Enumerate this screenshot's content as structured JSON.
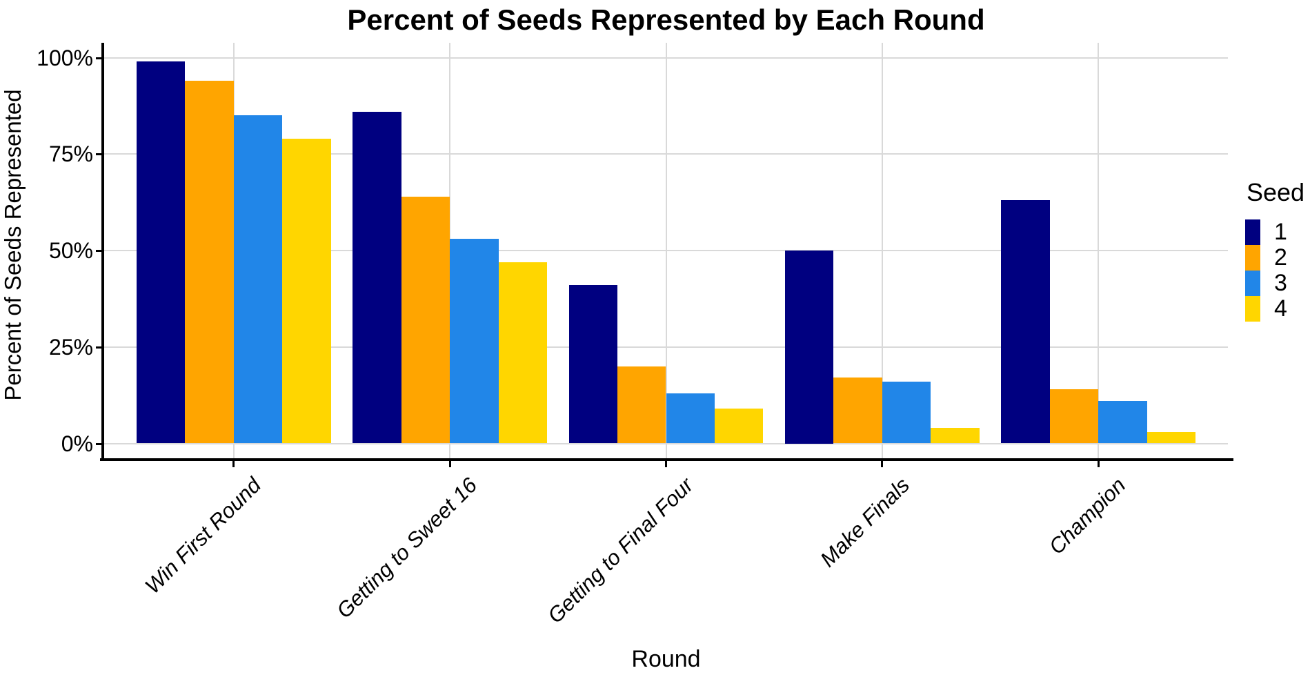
{
  "chart_data": {
    "type": "bar",
    "title": "Percent of Seeds Represented by Each Round",
    "xlabel": "Round",
    "ylabel": "Percent of Seeds Represented",
    "categories": [
      "Win First Round",
      "Getting to Sweet 16",
      "Getting to Final Four",
      "Make Finals",
      "Champion"
    ],
    "series": [
      {
        "name": "1",
        "color": "#000080",
        "values": [
          99,
          86,
          41,
          50,
          63
        ]
      },
      {
        "name": "2",
        "color": "#FFA500",
        "values": [
          94,
          64,
          20,
          17,
          14
        ]
      },
      {
        "name": "3",
        "color": "#2186E8",
        "values": [
          85,
          53,
          13,
          16,
          11
        ]
      },
      {
        "name": "4",
        "color": "#FFD600",
        "values": [
          79,
          47,
          9,
          4,
          3
        ]
      }
    ],
    "y_ticks": [
      "0%",
      "25%",
      "50%",
      "75%",
      "100%"
    ],
    "y_tick_values": [
      0,
      25,
      50,
      75,
      100
    ],
    "ylim": [
      0,
      100
    ],
    "legend_title": "Seed",
    "legend_position": "right",
    "grid": true,
    "colors": {
      "gridline": "#d9d9d9",
      "axis": "#000000",
      "background": "#ffffff",
      "text": "#000000"
    }
  }
}
